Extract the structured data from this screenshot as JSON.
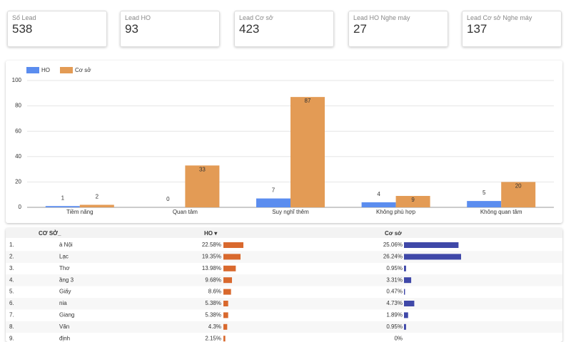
{
  "kpis": [
    {
      "label": "Số Lead",
      "value": "538"
    },
    {
      "label": "Lead HO",
      "value": "93"
    },
    {
      "label": "Lead Cơ sở",
      "value": "423"
    },
    {
      "label": "Lead HO Nghe máy",
      "value": "27"
    },
    {
      "label": "Lead Cơ sở Nghe máy",
      "value": "137"
    }
  ],
  "chart_data": {
    "type": "bar",
    "categories": [
      "Tiềm năng",
      "Quan tâm",
      "Suy nghĩ thêm",
      "Không phù hợp",
      "Không quan tâm"
    ],
    "series": [
      {
        "name": "HO",
        "color": "#5b8def",
        "values": [
          1,
          0,
          7,
          4,
          5
        ]
      },
      {
        "name": "Cơ sở",
        "color": "#e39b55",
        "values": [
          2,
          33,
          87,
          9,
          20
        ]
      }
    ],
    "ylim": [
      0,
      100
    ],
    "yticks": [
      0,
      20,
      40,
      60,
      80,
      100
    ],
    "grid": true,
    "legend": "top-left"
  },
  "table": {
    "headers": [
      "CƠ SỞ_",
      "HO ▾",
      "Cơ sở"
    ],
    "rows": [
      {
        "index": "1.",
        "name": "à Nội"
      },
      {
        "index": "2.",
        "name": "Lạc"
      },
      {
        "index": "3.",
        "name": "Thơ"
      },
      {
        "index": "4.",
        "name": "ầng 3"
      },
      {
        "index": "5.",
        "name": "Giấy"
      },
      {
        "index": "6.",
        "name": "nia"
      },
      {
        "index": "7.",
        "name": "Giang"
      },
      {
        "index": "8.",
        "name": "Văn"
      },
      {
        "index": "9.",
        "name": "định"
      }
    ],
    "ho_values": [
      22.58,
      19.35,
      13.98,
      9.68,
      8.6,
      5.38,
      5.38,
      4.3,
      2.15
    ],
    "ho_labels": [
      "22.58%",
      "19.35%",
      "13.98%",
      "9.68%",
      "8.6%",
      "5.38%",
      "5.38%",
      "4.3%",
      "2.15%"
    ],
    "cs_values": [
      25.06,
      26.24,
      0.95,
      3.31,
      0.47,
      4.73,
      1.89,
      0.95,
      0
    ],
    "cs_labels": [
      "25.06%",
      "26.24%",
      "0.95%",
      "3.31%",
      "0.47%",
      "4.73%",
      "1.89%",
      "0.95%",
      "0%"
    ],
    "ho_color": "#d9692e",
    "cs_color": "#3f48a8"
  }
}
